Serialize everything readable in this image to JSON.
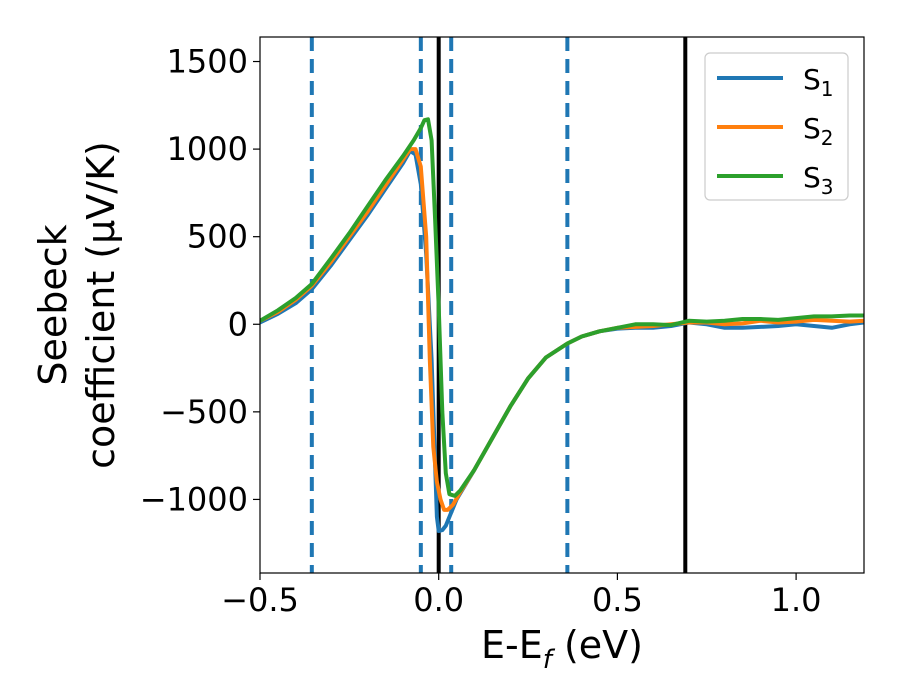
{
  "chart_data": {
    "type": "line",
    "xlabel": "E-E",
    "xlabel_sub": "f",
    "xlabel_unit": " (eV)",
    "ylabel_line1": "Seebeck",
    "ylabel_line2": "coefficient  (μV/K)",
    "xlim": [
      -0.5,
      1.19
    ],
    "ylim": [
      -1420,
      1640
    ],
    "x_ticks": [
      -0.5,
      0.0,
      0.5,
      1.0
    ],
    "x_tick_labels": [
      "−0.5",
      "0.0",
      "0.5",
      "1.0"
    ],
    "y_ticks": [
      -1000,
      -500,
      0,
      500,
      1000,
      1500
    ],
    "y_tick_labels": [
      "−1000",
      "−500",
      "0",
      "500",
      "1000",
      "1500"
    ],
    "grid": false,
    "legend_position": "top-right",
    "vertical_dashed_lines": {
      "color": "#1f77b4",
      "x": [
        -0.355,
        -0.05,
        0.035,
        0.36
      ]
    },
    "vertical_solid_lines": {
      "color": "#000000",
      "x": [
        0.0,
        0.69
      ]
    },
    "series": [
      {
        "name": "S",
        "sub": "1",
        "color": "#1f77b4",
        "points": [
          [
            -0.5,
            10
          ],
          [
            -0.45,
            60
          ],
          [
            -0.4,
            120
          ],
          [
            -0.355,
            200
          ],
          [
            -0.3,
            340
          ],
          [
            -0.25,
            480
          ],
          [
            -0.2,
            620
          ],
          [
            -0.15,
            770
          ],
          [
            -0.1,
            920
          ],
          [
            -0.08,
            990
          ],
          [
            -0.065,
            970
          ],
          [
            -0.05,
            800
          ],
          [
            -0.035,
            400
          ],
          [
            -0.02,
            -200
          ],
          [
            -0.01,
            -800
          ],
          [
            -0.005,
            -1100
          ],
          [
            0.0,
            -1180
          ],
          [
            0.01,
            -1175
          ],
          [
            0.02,
            -1150
          ],
          [
            0.03,
            -1100
          ],
          [
            0.05,
            -1000
          ],
          [
            0.1,
            -830
          ],
          [
            0.15,
            -650
          ],
          [
            0.2,
            -470
          ],
          [
            0.25,
            -310
          ],
          [
            0.3,
            -190
          ],
          [
            0.36,
            -110
          ],
          [
            0.4,
            -70
          ],
          [
            0.45,
            -40
          ],
          [
            0.5,
            -25
          ],
          [
            0.55,
            -20
          ],
          [
            0.6,
            -20
          ],
          [
            0.65,
            -10
          ],
          [
            0.7,
            10
          ],
          [
            0.75,
            0
          ],
          [
            0.8,
            -20
          ],
          [
            0.85,
            -20
          ],
          [
            0.9,
            -15
          ],
          [
            0.95,
            -10
          ],
          [
            1.0,
            0
          ],
          [
            1.05,
            -10
          ],
          [
            1.1,
            -20
          ],
          [
            1.15,
            0
          ],
          [
            1.19,
            10
          ]
        ]
      },
      {
        "name": "S",
        "sub": "2",
        "color": "#ff7f0e",
        "points": [
          [
            -0.5,
            20
          ],
          [
            -0.45,
            70
          ],
          [
            -0.4,
            140
          ],
          [
            -0.355,
            220
          ],
          [
            -0.3,
            360
          ],
          [
            -0.25,
            500
          ],
          [
            -0.2,
            640
          ],
          [
            -0.15,
            790
          ],
          [
            -0.1,
            940
          ],
          [
            -0.08,
            1000
          ],
          [
            -0.065,
            1000
          ],
          [
            -0.05,
            900
          ],
          [
            -0.035,
            500
          ],
          [
            -0.025,
            -200
          ],
          [
            -0.015,
            -700
          ],
          [
            -0.005,
            -900
          ],
          [
            0.005,
            -1000
          ],
          [
            0.015,
            -1060
          ],
          [
            0.025,
            -1060
          ],
          [
            0.04,
            -1030
          ],
          [
            0.06,
            -960
          ],
          [
            0.1,
            -830
          ],
          [
            0.15,
            -650
          ],
          [
            0.2,
            -470
          ],
          [
            0.25,
            -310
          ],
          [
            0.3,
            -190
          ],
          [
            0.36,
            -110
          ],
          [
            0.4,
            -70
          ],
          [
            0.45,
            -40
          ],
          [
            0.5,
            -20
          ],
          [
            0.55,
            -15
          ],
          [
            0.6,
            -10
          ],
          [
            0.65,
            0
          ],
          [
            0.7,
            10
          ],
          [
            0.75,
            10
          ],
          [
            0.8,
            0
          ],
          [
            0.85,
            5
          ],
          [
            0.9,
            20
          ],
          [
            0.95,
            10
          ],
          [
            1.0,
            15
          ],
          [
            1.05,
            25
          ],
          [
            1.1,
            20
          ],
          [
            1.15,
            15
          ],
          [
            1.19,
            20
          ]
        ]
      },
      {
        "name": "S",
        "sub": "3",
        "color": "#2ca02c",
        "points": [
          [
            -0.5,
            20
          ],
          [
            -0.45,
            80
          ],
          [
            -0.4,
            150
          ],
          [
            -0.355,
            230
          ],
          [
            -0.3,
            380
          ],
          [
            -0.25,
            520
          ],
          [
            -0.2,
            670
          ],
          [
            -0.15,
            820
          ],
          [
            -0.1,
            960
          ],
          [
            -0.07,
            1050
          ],
          [
            -0.05,
            1120
          ],
          [
            -0.04,
            1165
          ],
          [
            -0.03,
            1170
          ],
          [
            -0.02,
            1050
          ],
          [
            -0.01,
            600
          ],
          [
            0.0,
            100
          ],
          [
            0.01,
            -500
          ],
          [
            0.02,
            -850
          ],
          [
            0.03,
            -970
          ],
          [
            0.045,
            -980
          ],
          [
            0.06,
            -950
          ],
          [
            0.1,
            -830
          ],
          [
            0.15,
            -650
          ],
          [
            0.2,
            -470
          ],
          [
            0.25,
            -310
          ],
          [
            0.3,
            -190
          ],
          [
            0.36,
            -110
          ],
          [
            0.4,
            -70
          ],
          [
            0.45,
            -40
          ],
          [
            0.5,
            -20
          ],
          [
            0.55,
            0
          ],
          [
            0.6,
            0
          ],
          [
            0.65,
            -5
          ],
          [
            0.7,
            20
          ],
          [
            0.75,
            15
          ],
          [
            0.8,
            20
          ],
          [
            0.85,
            30
          ],
          [
            0.9,
            30
          ],
          [
            0.95,
            25
          ],
          [
            1.0,
            35
          ],
          [
            1.05,
            45
          ],
          [
            1.1,
            45
          ],
          [
            1.15,
            50
          ],
          [
            1.19,
            50
          ]
        ]
      }
    ]
  }
}
